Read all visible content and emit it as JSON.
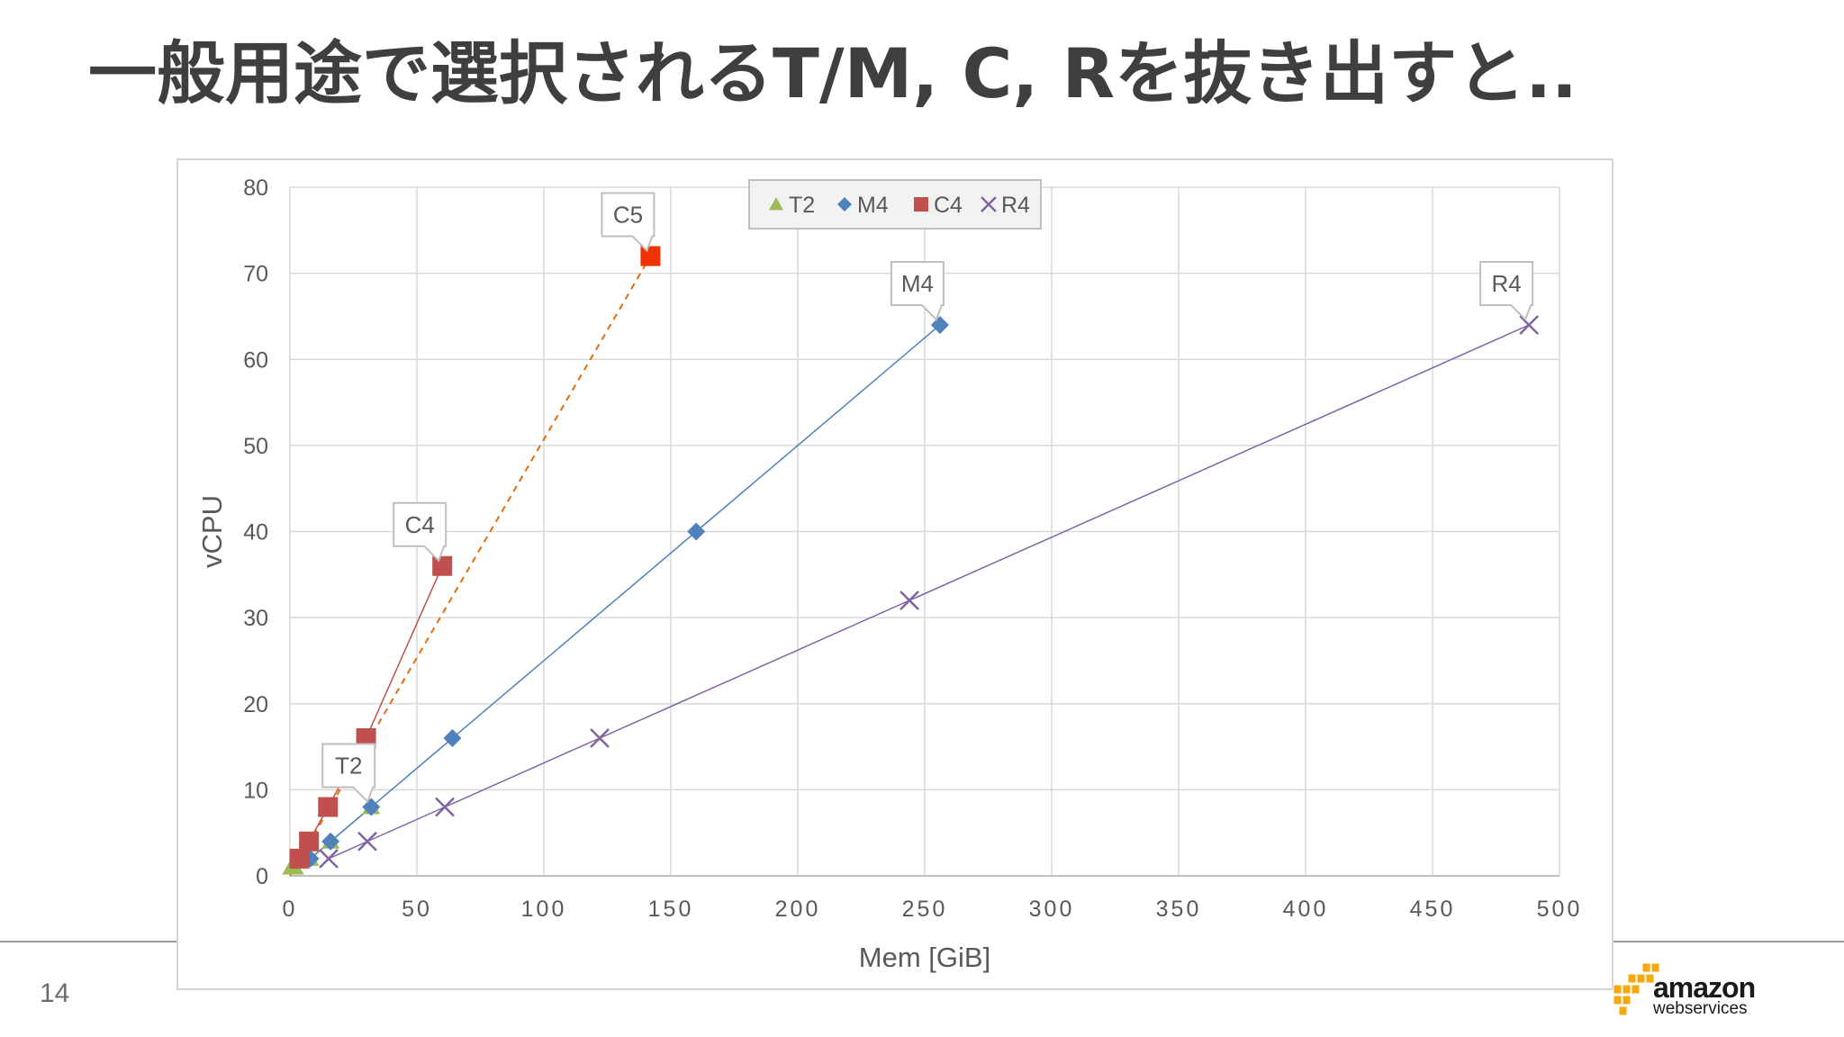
{
  "slide": {
    "title": "一般用途で選択されるT/M, C, Rを抜き出すと..",
    "page_number": "14",
    "logo_text": "amazon",
    "logo_subtext": "webservices"
  },
  "chart_data": {
    "type": "scatter",
    "xlabel": "Mem [GiB]",
    "ylabel": "vCPU",
    "xlim": [
      0,
      500
    ],
    "ylim": [
      0,
      80
    ],
    "xticks": [
      0,
      50,
      100,
      150,
      200,
      250,
      300,
      350,
      400,
      450,
      500
    ],
    "yticks": [
      0,
      10,
      20,
      30,
      40,
      50,
      60,
      70,
      80
    ],
    "grid": true,
    "legend_position": "top-center",
    "series": [
      {
        "name": "T2",
        "marker": "triangle",
        "color": "#9bbb59",
        "points": [
          [
            0.5,
            1
          ],
          [
            1,
            1
          ],
          [
            2,
            1
          ],
          [
            4,
            2
          ],
          [
            8,
            2
          ],
          [
            16,
            4
          ],
          [
            32,
            8
          ]
        ]
      },
      {
        "name": "M4",
        "marker": "diamond",
        "color": "#4f81bd",
        "points": [
          [
            8,
            2
          ],
          [
            16,
            4
          ],
          [
            32,
            8
          ],
          [
            64,
            16
          ],
          [
            160,
            40
          ],
          [
            256,
            64
          ]
        ]
      },
      {
        "name": "C4",
        "marker": "square",
        "color": "#c0504d",
        "points": [
          [
            3.75,
            2
          ],
          [
            7.5,
            4
          ],
          [
            15,
            8
          ],
          [
            30,
            16
          ],
          [
            60,
            36
          ]
        ]
      },
      {
        "name": "R4",
        "marker": "x",
        "color": "#8064a2",
        "points": [
          [
            15.25,
            2
          ],
          [
            30.5,
            4
          ],
          [
            61,
            8
          ],
          [
            122,
            16
          ],
          [
            244,
            32
          ],
          [
            488,
            64
          ]
        ]
      },
      {
        "marker": "square",
        "color": "#ee3300",
        "trend": "dashed",
        "trend_color": "#e46c0a",
        "points": [
          [
            142,
            72
          ]
        ]
      }
    ],
    "annotations": [
      {
        "text": "C5",
        "x": 142,
        "y": 72
      },
      {
        "text": "M4",
        "x": 256,
        "y": 64
      },
      {
        "text": "R4",
        "x": 488,
        "y": 64
      },
      {
        "text": "C4",
        "x": 60,
        "y": 36
      },
      {
        "text": "T2",
        "x": 32,
        "y": 8
      }
    ]
  }
}
